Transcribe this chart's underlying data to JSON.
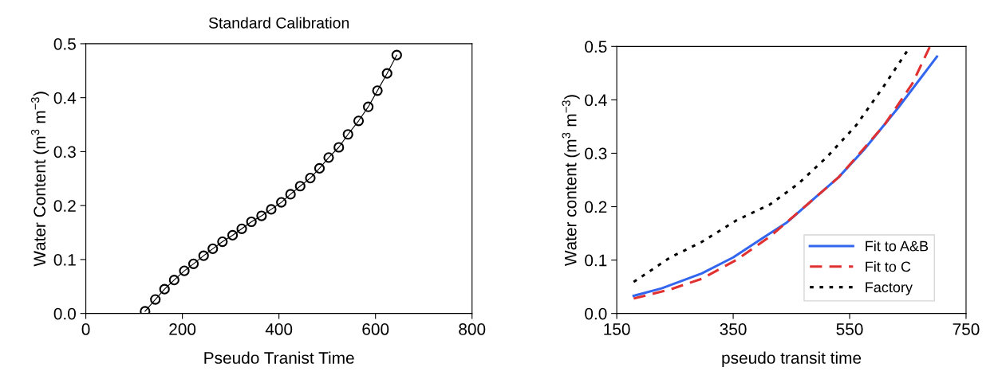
{
  "chart_data": [
    {
      "type": "line",
      "title": "Standard Calibration",
      "xlabel": "Pseudo Tranist Time",
      "ylabel": "Water Content (m$^{3}$ m$^{−3}$)",
      "marker": "circle",
      "line_style": "solid",
      "grid": false,
      "legend": false,
      "xlim": [
        0,
        800
      ],
      "xticks": [
        0,
        200,
        400,
        600,
        800
      ],
      "ylim": [
        0,
        0.5
      ],
      "yticks": [
        {
          "value": 0,
          "label": "0.0"
        },
        0.1,
        0.2,
        0.3,
        0.4,
        0.5
      ],
      "series": [
        {
          "color": "#000000",
          "x": [
            122.7,
            144,
            163,
            183,
            204,
            223,
            244,
            263,
            283,
            304,
            323,
            343,
            364,
            384,
            405,
            424,
            444,
            465,
            484,
            503,
            524,
            543,
            565,
            585,
            604,
            624,
            644
          ],
          "values": [
            0.004,
            0.026,
            0.045,
            0.062,
            0.079,
            0.092,
            0.107,
            0.12,
            0.133,
            0.145,
            0.157,
            0.17,
            0.181,
            0.193,
            0.206,
            0.221,
            0.236,
            0.251,
            0.269,
            0.289,
            0.308,
            0.332,
            0.357,
            0.383,
            0.413,
            0.445,
            0.479
          ]
        }
      ]
    },
    {
      "type": "line",
      "xlabel": "pseudo transit time",
      "ylabel": "Water content (m$^{3}$ m$^{−3}$)",
      "grid": false,
      "legend": "bottom right",
      "xlim": [
        150,
        750
      ],
      "xticks": [
        150,
        350,
        550,
        750
      ],
      "ylim": [
        0,
        0.5
      ],
      "yticks": [
        {
          "value": 0,
          "label": "0.0"
        },
        0.1,
        0.2,
        0.3,
        0.4,
        0.5
      ],
      "series": [
        {
          "name": "Fit to A&B",
          "color": "#3366ee",
          "line_style": "solid",
          "x": [
            179,
            227,
            296,
            350,
            399,
            443,
            492,
            531,
            575,
            634,
            700
          ],
          "values": [
            0.033,
            0.047,
            0.075,
            0.105,
            0.14,
            0.171,
            0.218,
            0.255,
            0.307,
            0.386,
            0.481
          ]
        },
        {
          "name": "Fit to C",
          "color": "#e03030",
          "line_style": "dashed",
          "x": [
            179,
            242,
            296,
            355,
            413,
            472,
            531,
            565,
            609,
            658,
            688
          ],
          "values": [
            0.028,
            0.045,
            0.065,
            0.1,
            0.144,
            0.199,
            0.255,
            0.297,
            0.352,
            0.431,
            0.5
          ]
        },
        {
          "name": "Factory",
          "color": "#000000",
          "line_style": "dotted",
          "x": [
            179,
            242,
            296,
            355,
            413,
            462,
            511,
            561,
            609,
            654
          ],
          "values": [
            0.059,
            0.105,
            0.134,
            0.174,
            0.204,
            0.243,
            0.293,
            0.352,
            0.426,
            0.5
          ]
        }
      ]
    }
  ]
}
